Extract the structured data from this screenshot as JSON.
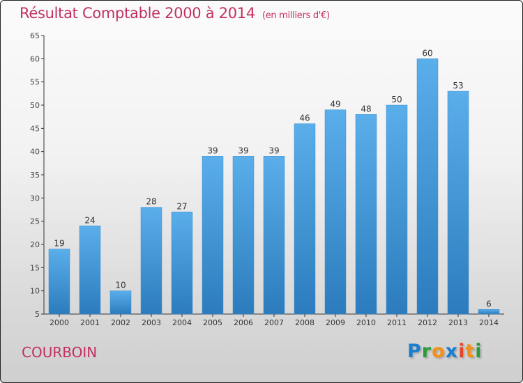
{
  "title": "Résultat Comptable 2000 à 2014",
  "unit": "(en milliers d'€)",
  "commune": "COURBOIN",
  "logo": "Proxiti",
  "colors": {
    "title": "#c2315f",
    "bar_top": "#5aaeea",
    "bar_bottom": "#2c7cbd"
  },
  "chart_data": {
    "type": "bar",
    "title": "Résultat Comptable 2000 à 2014",
    "ylabel": "(en milliers d'€)",
    "categories": [
      "2000",
      "2001",
      "2002",
      "2003",
      "2004",
      "2005",
      "2006",
      "2007",
      "2008",
      "2009",
      "2010",
      "2011",
      "2012",
      "2013",
      "2014"
    ],
    "values": [
      19,
      24,
      10,
      28,
      27,
      39,
      39,
      39,
      46,
      49,
      48,
      50,
      60,
      53,
      6
    ],
    "ylim": [
      5,
      65
    ],
    "yticks": [
      5,
      10,
      15,
      20,
      25,
      30,
      35,
      40,
      45,
      50,
      55,
      60,
      65
    ],
    "grid": false
  }
}
